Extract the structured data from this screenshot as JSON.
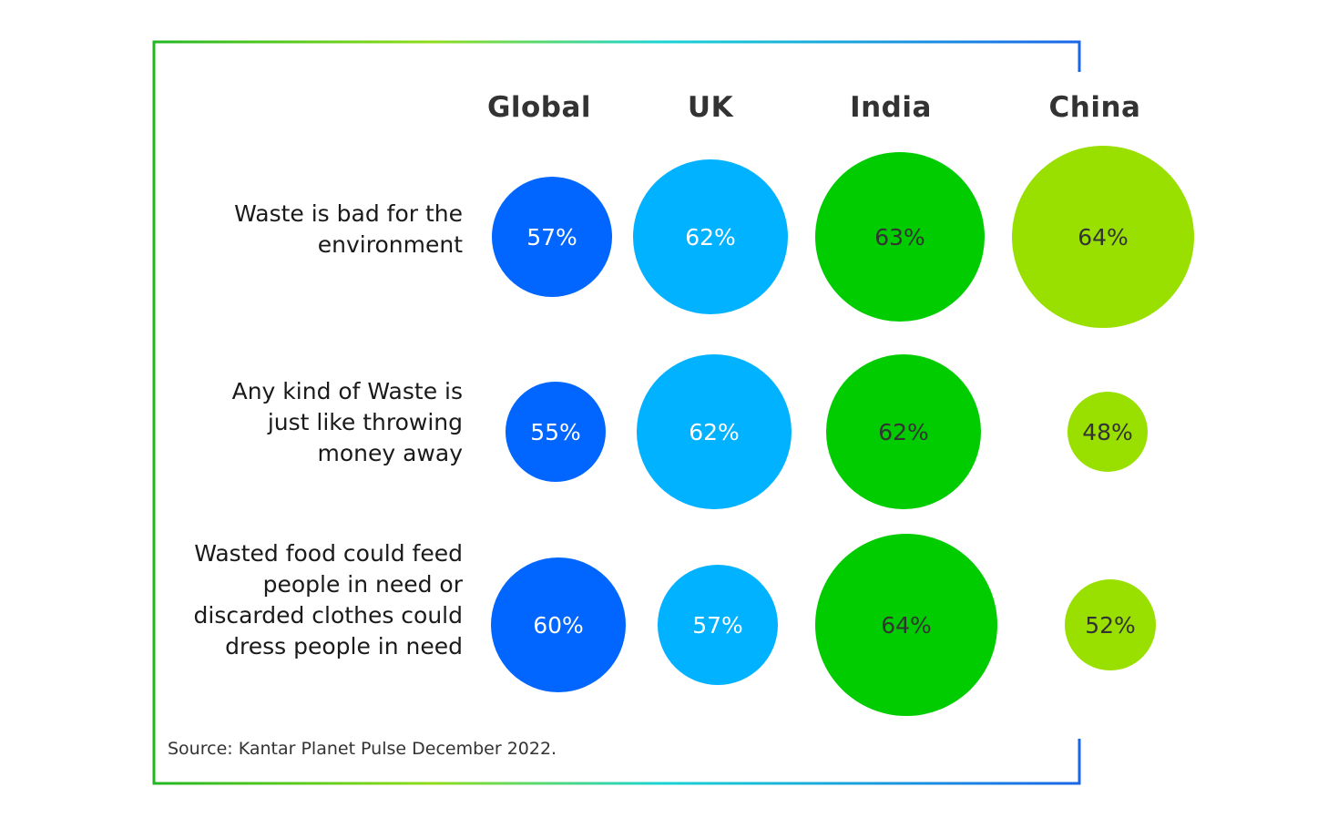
{
  "colors": {
    "global": "#0066ff",
    "uk": "#00b2ff",
    "india": "#00cc00",
    "china": "#99e000",
    "frame_left": "#22b722",
    "frame_mid": "#19d3d3",
    "frame_right": "#1a66e8",
    "dark_text": "#333333",
    "light_text": "#ffffff"
  },
  "chart_data": {
    "type": "bubble",
    "columns": [
      "Global",
      "UK",
      "India",
      "China"
    ],
    "rows": [
      {
        "label_lines": [
          "Waste is bad for the",
          "environment"
        ],
        "values": [
          57,
          62,
          63,
          64
        ],
        "labels": [
          "57%",
          "62%",
          "63%",
          "64%"
        ]
      },
      {
        "label_lines": [
          "Any kind of Waste is",
          "just like throwing",
          "money away"
        ],
        "values": [
          55,
          62,
          62,
          48
        ],
        "labels": [
          "55%",
          "62%",
          "62%",
          "48%"
        ]
      },
      {
        "label_lines": [
          "Wasted food could feed",
          "people in need or",
          "discarded clothes could",
          "dress people in need"
        ],
        "values": [
          60,
          57,
          64,
          52
        ],
        "labels": [
          "60%",
          "57%",
          "64%",
          "52%"
        ]
      }
    ],
    "source": "Source: Kantar Planet Pulse December 2022."
  }
}
